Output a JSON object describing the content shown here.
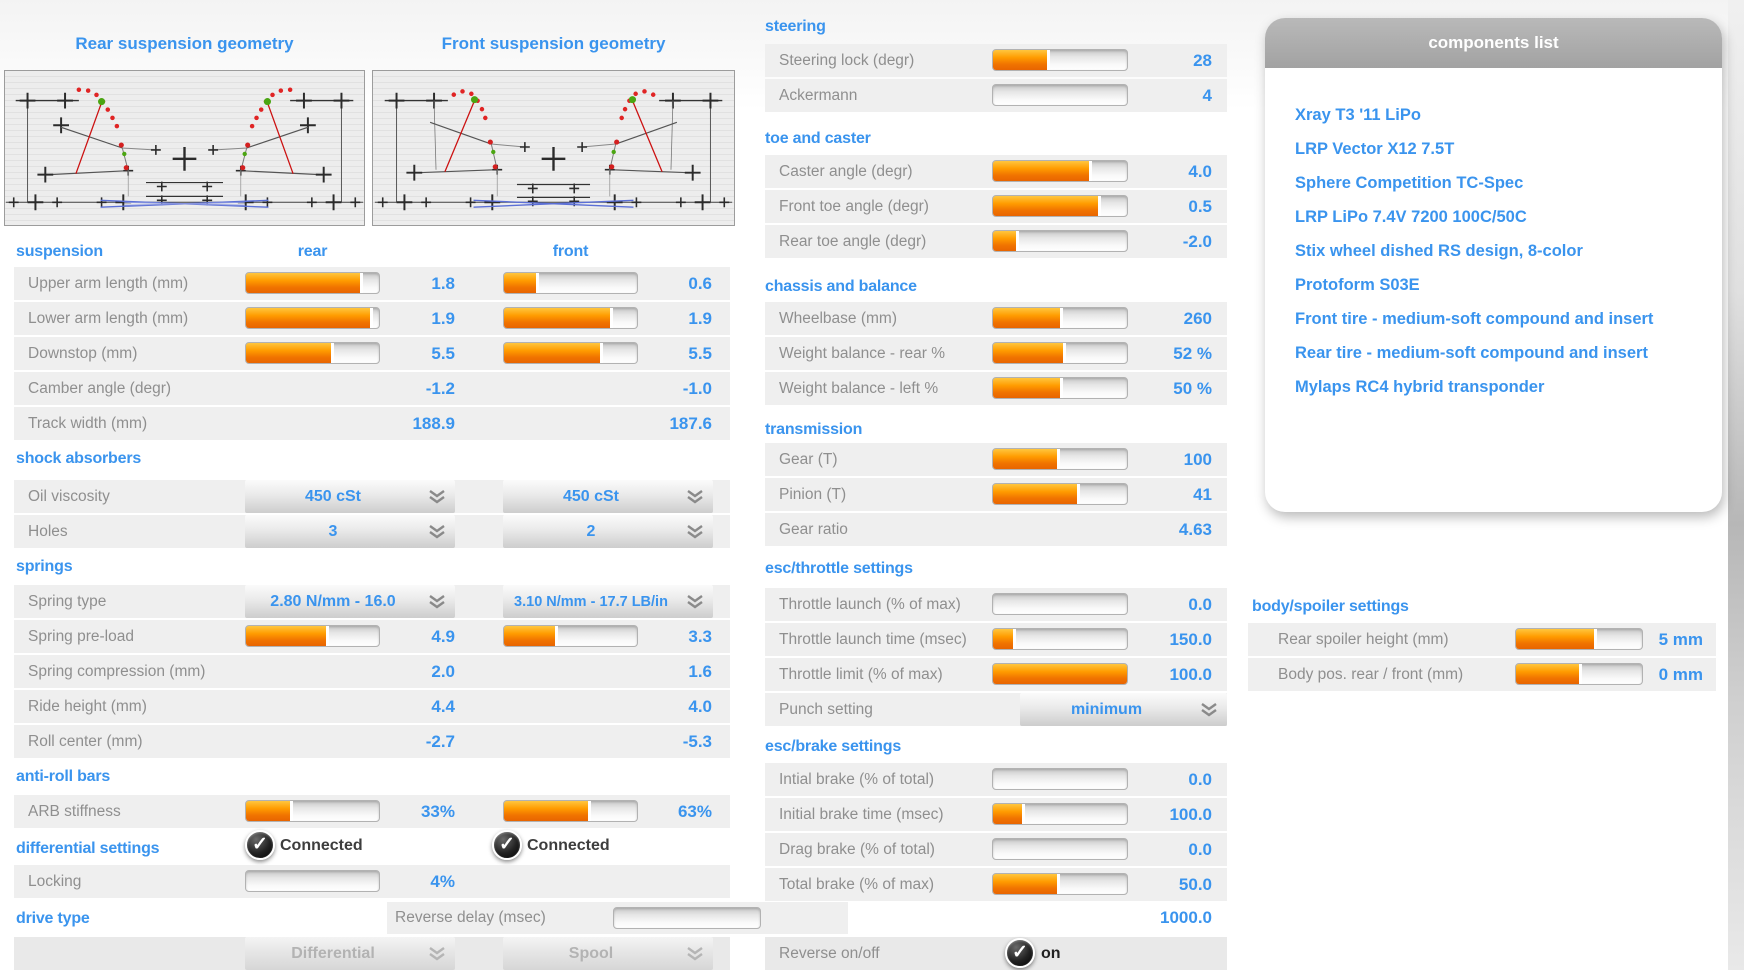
{
  "colors": {
    "accent_blue": "#3a94ee",
    "slider_orange": "#ff9c00",
    "label_gray": "#8f8f8f",
    "row_bg": "#efefef",
    "panel_header_gray": "#a9a9a9"
  },
  "geometry": {
    "rear_title": "Rear suspension geometry",
    "front_title": "Front suspension geometry"
  },
  "suspension": {
    "heading": "suspension",
    "col_rear": "rear",
    "col_front": "front",
    "rows": [
      {
        "label": "Upper arm length (mm)",
        "rear": "1.8",
        "rear_fill": 86,
        "front": "0.6",
        "front_fill": 24
      },
      {
        "label": "Lower arm length (mm)",
        "rear": "1.9",
        "rear_fill": 93,
        "front": "1.9",
        "front_fill": 80
      },
      {
        "label": "Downstop (mm)",
        "rear": "5.5",
        "rear_fill": 64,
        "front": "5.5",
        "front_fill": 72
      },
      {
        "label": "Camber angle (degr)",
        "rear": "-1.2",
        "front": "-1.0"
      },
      {
        "label": "Track width (mm)",
        "rear": "188.9",
        "front": "187.6"
      }
    ]
  },
  "shock_absorbers": {
    "heading": "shock absorbers",
    "rows": [
      {
        "label": "Oil viscosity",
        "rear": "450 cSt",
        "front": "450 cSt"
      },
      {
        "label": "Holes",
        "rear": "3",
        "front": "2"
      }
    ]
  },
  "springs": {
    "heading": "springs",
    "type_row": {
      "label": "Spring type",
      "rear": "2.80 N/mm - 16.0",
      "front": "3.10 N/mm - 17.7 LB/in"
    },
    "rows": [
      {
        "label": "Spring pre-load",
        "rear": "4.9",
        "rear_fill": 60,
        "front": "3.3",
        "front_fill": 38
      },
      {
        "label": "Spring compression (mm)",
        "rear": "2.0",
        "front": "1.6"
      },
      {
        "label": "Ride height (mm)",
        "rear": "4.4",
        "front": "4.0"
      },
      {
        "label": "Roll center (mm)",
        "rear": "-2.7",
        "front": "-5.3"
      }
    ]
  },
  "anti_roll_bars": {
    "heading": "anti-roll bars",
    "row": {
      "label": "ARB stiffness",
      "rear": "33%",
      "rear_fill": 33,
      "front": "63%",
      "front_fill": 63
    },
    "rear_connected": "Connected",
    "front_connected": "Connected"
  },
  "differential_settings": {
    "heading": "differential settings",
    "row": {
      "label": "Locking",
      "value": "4%",
      "fill": 0
    }
  },
  "drive_type": {
    "heading": "drive type",
    "rear_option": "Differential",
    "front_option": "Spool"
  },
  "reverse_delay": {
    "label": "Reverse delay (msec)",
    "value": "1000.0",
    "fill": 0
  },
  "steering": {
    "heading": "steering",
    "rows": [
      {
        "label": "Steering lock (degr)",
        "value": "28",
        "fill": 40
      },
      {
        "label": "Ackermann",
        "value": "4",
        "fill": 0
      }
    ]
  },
  "toe_and_caster": {
    "heading": "toe and caster",
    "rows": [
      {
        "label": "Caster angle (degr)",
        "value": "4.0",
        "fill": 72
      },
      {
        "label": "Front toe angle (degr)",
        "value": "0.5",
        "fill": 78
      },
      {
        "label": "Rear toe angle (degr)",
        "value": "-2.0",
        "fill": 17
      }
    ]
  },
  "chassis_and_balance": {
    "heading": "chassis and balance",
    "rows": [
      {
        "label": "Wheelbase (mm)",
        "value": "260",
        "fill": 50
      },
      {
        "label": "Weight balance - rear %",
        "value": "52 %",
        "fill": 52
      },
      {
        "label": "Weight balance - left %",
        "value": "50 %",
        "fill": 50
      }
    ]
  },
  "transmission": {
    "heading": "transmission",
    "rows": [
      {
        "label": "Gear (T)",
        "value": "100",
        "fill": 48
      },
      {
        "label": "Pinion (T)",
        "value": "41",
        "fill": 63
      }
    ],
    "gear_ratio": {
      "label": "Gear ratio",
      "value": "4.63"
    }
  },
  "esc_throttle": {
    "heading": "esc/throttle settings",
    "rows": [
      {
        "label": "Throttle launch (% of max)",
        "value": "0.0",
        "fill": 0
      },
      {
        "label": "Throttle launch time (msec)",
        "value": "150.0",
        "fill": 15
      },
      {
        "label": "Throttle limit (% of max)",
        "value": "100.0",
        "fill": 100
      }
    ],
    "punch": {
      "label": "Punch setting",
      "value": "minimum"
    }
  },
  "esc_brake": {
    "heading": "esc/brake settings",
    "rows": [
      {
        "label": "Intial brake (% of total)",
        "value": "0.0",
        "fill": 0
      },
      {
        "label": "Initial brake time (msec)",
        "value": "100.0",
        "fill": 22
      },
      {
        "label": "Drag brake (% of total)",
        "value": "0.0",
        "fill": 0
      },
      {
        "label": "Total brake (% of max)",
        "value": "50.0",
        "fill": 48
      }
    ],
    "reverse": {
      "label": "Reverse on/off",
      "value": "on"
    }
  },
  "components": {
    "title": "components list",
    "items": [
      "Xray T3 '11 LiPo",
      "LRP Vector X12 7.5T",
      "Sphere Competition TC-Spec",
      "LRP LiPo 7.4V 7200 100C/50C",
      "Stix wheel dished RS design, 8-color",
      "Protoform S03E",
      "Front tire - medium-soft compound and insert",
      "Rear tire - medium-soft compound and insert",
      "Mylaps RC4 hybrid transponder"
    ]
  },
  "body_spoiler": {
    "heading": "body/spoiler settings",
    "rows": [
      {
        "label": "Rear spoiler height (mm)",
        "value": "5 mm",
        "fill": 62
      },
      {
        "label": "Body pos. rear / front (mm)",
        "value": "0 mm",
        "fill": 50
      }
    ]
  }
}
